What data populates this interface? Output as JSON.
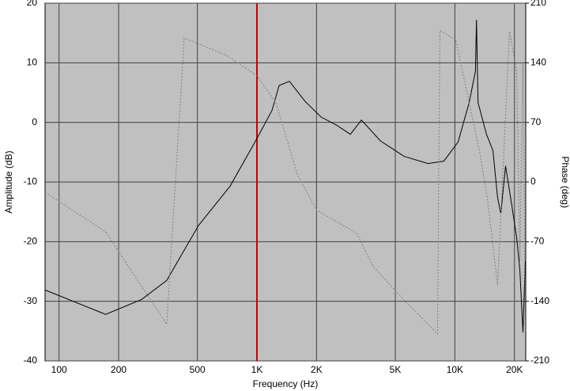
{
  "chart_data": {
    "type": "line",
    "xlabel": "Frequency (Hz)",
    "ylabel": "Amplitude (dB)",
    "y2label": "Phase (deg)",
    "xscale": "log",
    "grid": true,
    "cursor_x": 1000,
    "cursor_color": "#c00000",
    "xlim": [
      85,
      22800
    ],
    "ylim": [
      -40,
      20
    ],
    "y2lim": [
      -210,
      210
    ],
    "xticks": [
      100,
      200,
      500,
      {
        "value": 1000,
        "label": "1K"
      },
      {
        "value": 2000,
        "label": "2K"
      },
      {
        "value": 5000,
        "label": "5K"
      },
      {
        "value": 10000,
        "label": "10K"
      },
      {
        "value": 20000,
        "label": "20K"
      }
    ],
    "yticks": [
      20,
      10,
      0,
      -10,
      -20,
      -30,
      -40
    ],
    "y2ticks": [
      210,
      140,
      70,
      0,
      -70,
      -140,
      -210
    ],
    "series": [
      {
        "name": "Amplitude",
        "color": "#000000",
        "dashed": false,
        "x": [
          85,
          172,
          261,
          350,
          506,
          731,
          1000,
          1191,
          1294,
          1459,
          1754,
          2109,
          2535,
          2965,
          3373,
          4207,
          5546,
          7311,
          8790,
          10380,
          11800,
          12700,
          12850,
          13100,
          14450,
          15560,
          16440,
          17060,
          18030,
          19410,
          20510,
          21280,
          22080,
          22700
        ],
        "values": [
          -28.1,
          -32.2,
          -29.7,
          -26.5,
          -17.3,
          -10.7,
          -2.7,
          2.0,
          6.2,
          6.9,
          3.5,
          0.9,
          -0.5,
          -2.0,
          0.4,
          -3.1,
          -5.7,
          -6.9,
          -6.5,
          -3.3,
          3.3,
          8.6,
          17.2,
          3.3,
          -2.0,
          -4.7,
          -12.6,
          -15.3,
          -7.3,
          -14.0,
          -19.3,
          -24.6,
          -35.2,
          -23.3
        ]
      },
      {
        "name": "Phase",
        "color": "#808080",
        "dashed": true,
        "axis": "y2",
        "x": [
          85,
          172,
          350,
          429,
          698,
          1000,
          1247,
          1600,
          2000,
          3192,
          3837,
          5546,
          8166,
          8395,
          10090,
          11590,
          13300,
          14590,
          16440,
          18880,
          20510,
          21280,
          22080,
          22700
        ],
        "values": [
          -12,
          -58.5,
          -167,
          169,
          149,
          125,
          93,
          9,
          -33,
          -60,
          -98,
          -139,
          -178,
          178,
          167,
          102,
          37,
          -19,
          -121,
          177,
          130,
          -93,
          139,
          -177
        ]
      }
    ]
  }
}
